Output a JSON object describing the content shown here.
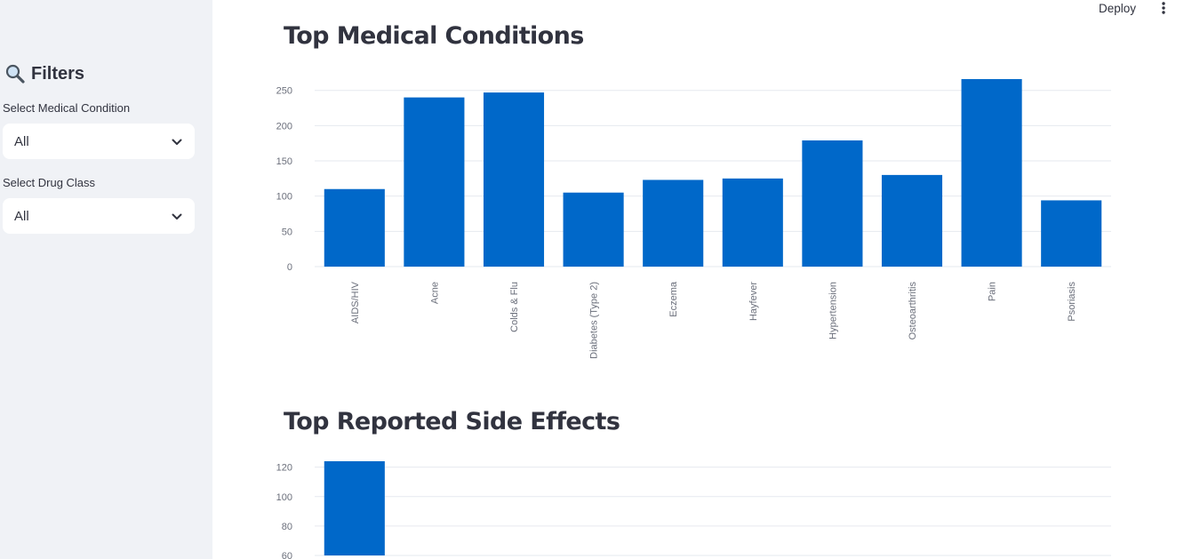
{
  "sidebar": {
    "title": "Filters",
    "title_icon": "magnifier-icon",
    "condition_label": "Select Medical Condition",
    "condition_value": "All",
    "drugclass_label": "Select Drug Class",
    "drugclass_value": "All"
  },
  "topbar": {
    "deploy_label": "Deploy",
    "menu_icon": "vertical-dots-icon"
  },
  "sections": {
    "conditions_title": "Top Medical Conditions",
    "side_effects_title": "Top Reported Side Effects"
  },
  "colors": {
    "bar": "#0068c9",
    "sidebar_bg": "#f0f2f6",
    "grid": "#e6e9ef"
  },
  "chart_data": [
    {
      "type": "bar",
      "title": "Top Medical Conditions",
      "categories": [
        "AIDS/HIV",
        "Acne",
        "Colds & Flu",
        "Diabetes (Type 2)",
        "Eczema",
        "Hayfever",
        "Hypertension",
        "Osteoarthritis",
        "Pain",
        "Psoriasis"
      ],
      "values": [
        110,
        240,
        247,
        105,
        123,
        125,
        179,
        130,
        266,
        94
      ],
      "yticks": [
        0,
        50,
        100,
        150,
        200,
        250
      ],
      "ylim": [
        0,
        266
      ],
      "grid": true
    },
    {
      "type": "bar",
      "title": "Top Reported Side Effects",
      "categories": [
        ""
      ],
      "values": [
        124
      ],
      "yticks": [
        60,
        80,
        100,
        120
      ],
      "ylim": [
        60,
        124
      ],
      "grid": true
    }
  ]
}
